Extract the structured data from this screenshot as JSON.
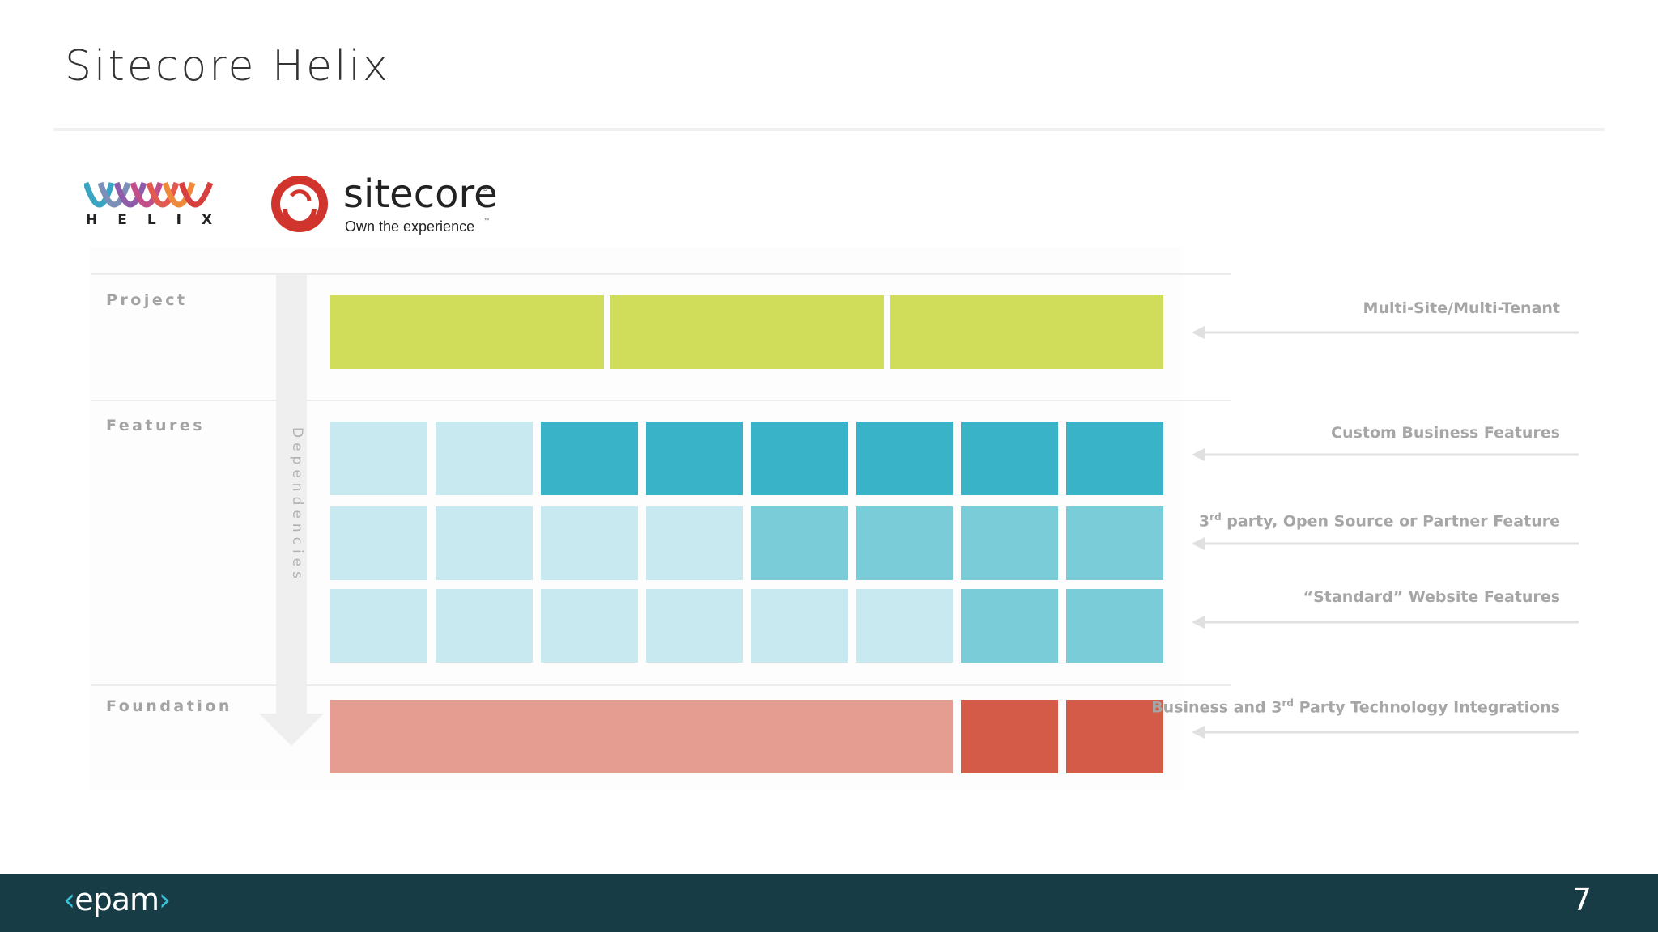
{
  "title": "Sitecore Helix",
  "logos": {
    "helix_word": "HELIX",
    "sitecore_name": "sitecore",
    "sitecore_registered": "®",
    "sitecore_tagline": "Own the experience",
    "sitecore_tm": "™",
    "epam_brand": "epam"
  },
  "diagram": {
    "layers": [
      {
        "label": "Project"
      },
      {
        "label": "Features"
      },
      {
        "label": "Foundation"
      }
    ],
    "dependencies_label": "Dependencies",
    "annotations": [
      {
        "pre": "Multi-Site/Multi-Tenant"
      },
      {
        "pre": "Custom Business Features"
      },
      {
        "pre": "3",
        "sup": "rd",
        "post": " party, Open Source or Partner Feature"
      },
      {
        "pre": "“Standard” Website Features"
      },
      {
        "pre": "Business and 3",
        "sup": "rd",
        "post": " Party Technology Integrations"
      }
    ],
    "colors": {
      "project": "#cfdd5a",
      "feature_light": "#c8e9ef",
      "feature_dark": "#39b3c7",
      "feature_mid": "#7acdd8",
      "foundation_light": "#e49d90",
      "foundation_dark": "#d45b47"
    },
    "blocks": {
      "project": [
        "project",
        "project",
        "project"
      ],
      "feature_rows": [
        [
          "feature_light",
          "feature_light",
          "feature_dark",
          "feature_dark",
          "feature_dark",
          "feature_dark",
          "feature_dark",
          "feature_dark"
        ],
        [
          "feature_light",
          "feature_light",
          "feature_light",
          "feature_light",
          "feature_mid",
          "feature_mid",
          "feature_mid",
          "feature_mid"
        ],
        [
          "feature_light",
          "feature_light",
          "feature_light",
          "feature_light",
          "feature_light",
          "feature_light",
          "feature_mid",
          "feature_mid"
        ]
      ],
      "foundation": [
        "foundation_light",
        "foundation_dark",
        "foundation_dark"
      ]
    }
  },
  "footer": {
    "page_number": "7"
  }
}
